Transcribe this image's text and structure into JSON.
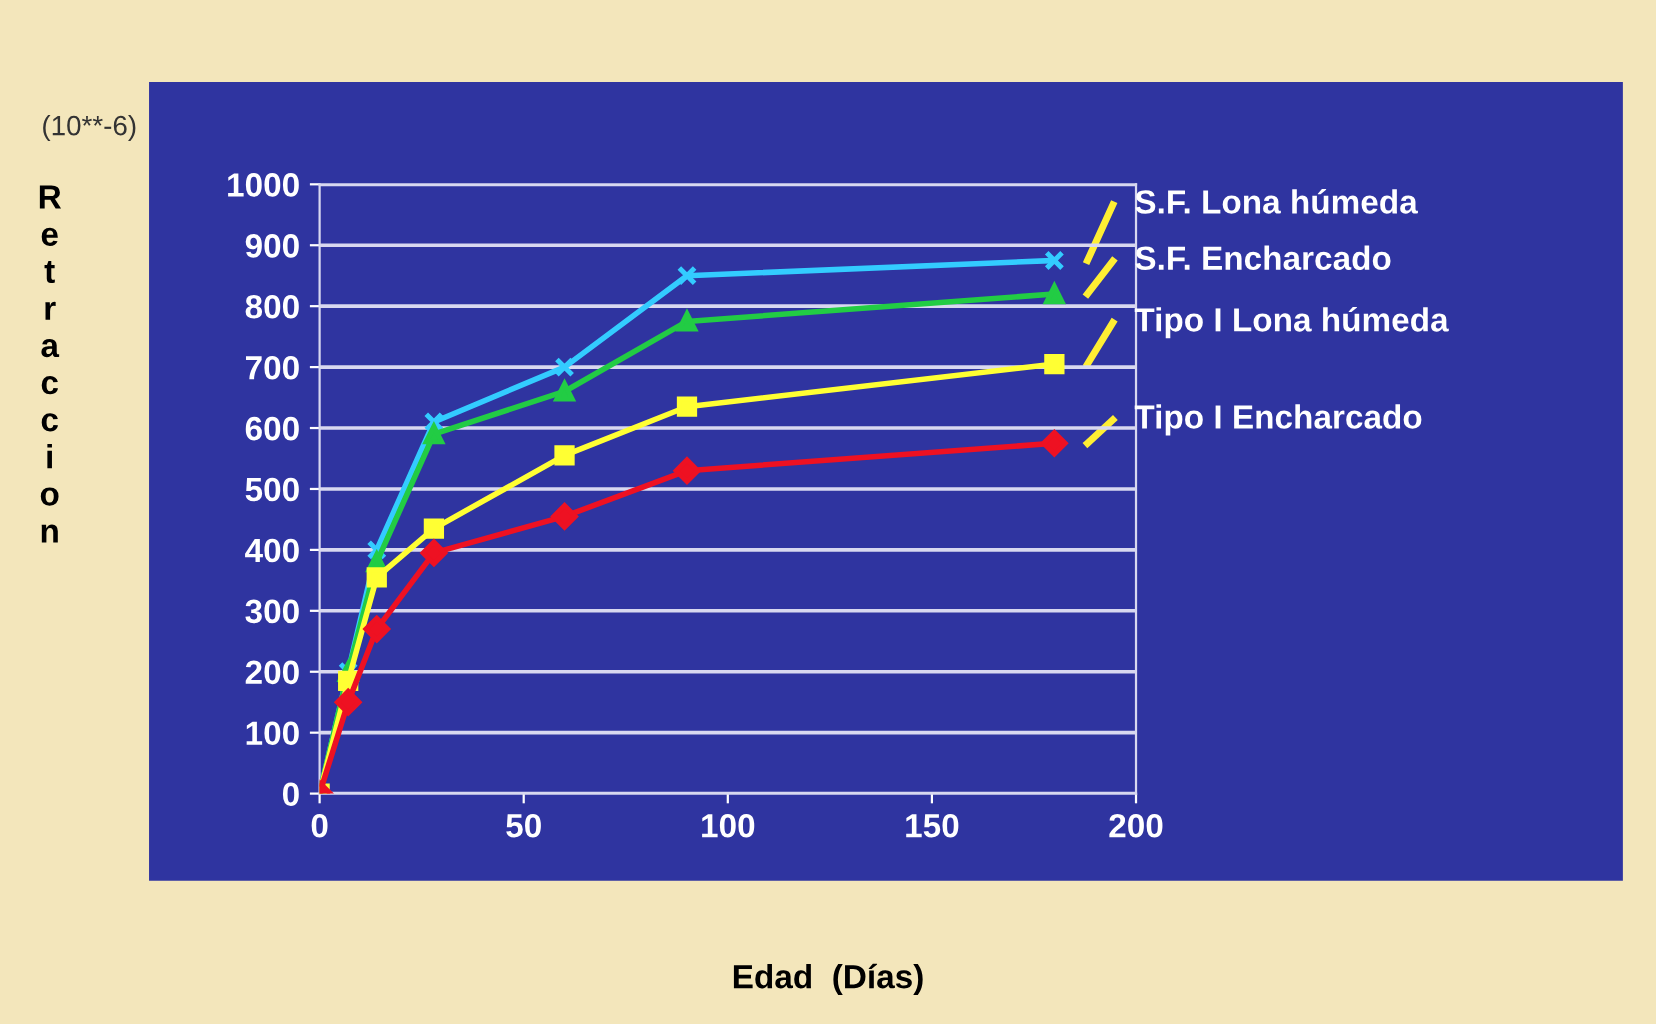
{
  "chart_data": {
    "type": "line",
    "xlabel": "Edad  (Días)",
    "ylabel": "Retraccion",
    "annotations": [
      "(10**-6)"
    ],
    "x": [
      0,
      7,
      14,
      28,
      60,
      90,
      180
    ],
    "xlim": [
      0,
      200
    ],
    "xticks": [
      0,
      50,
      100,
      150,
      200
    ],
    "ylim": [
      0,
      1000
    ],
    "yticks": [
      0,
      100,
      200,
      300,
      400,
      500,
      600,
      700,
      800,
      900,
      1000
    ],
    "grid": "y",
    "legend": "right",
    "series": [
      {
        "name": "S.F. Lona húmeda",
        "color": "#33ccff",
        "marker": "cross",
        "values": [
          0,
          200,
          400,
          610,
          700,
          850,
          875
        ]
      },
      {
        "name": "S.F. Encharcado",
        "color": "#22cc44",
        "marker": "triangle",
        "values": [
          0,
          200,
          380,
          590,
          660,
          775,
          820
        ]
      },
      {
        "name": "Tipo I Lona húmeda",
        "color": "#ffff33",
        "marker": "square",
        "values": [
          0,
          185,
          355,
          435,
          555,
          635,
          705
        ]
      },
      {
        "name": "Tipo I Encharcado",
        "color": "#ee1122",
        "marker": "diamond",
        "values": [
          0,
          150,
          270,
          395,
          455,
          530,
          575
        ]
      }
    ]
  }
}
